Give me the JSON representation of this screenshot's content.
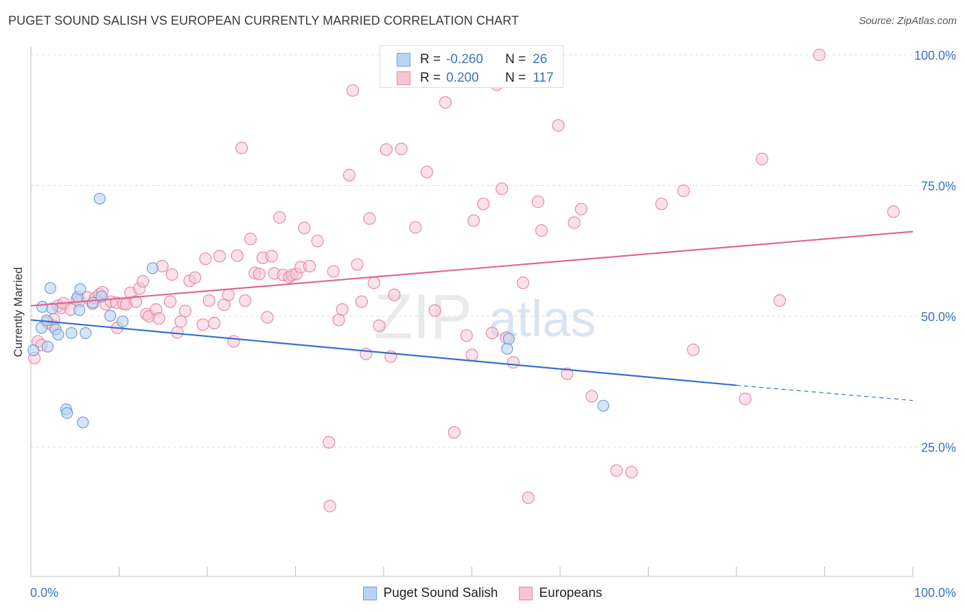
{
  "header": {
    "title": "PUGET SOUND SALISH VS EUROPEAN CURRENTLY MARRIED CORRELATION CHART",
    "source": "Source: ZipAtlas.com"
  },
  "watermark": {
    "zip": "ZIP",
    "atlas": "atlas"
  },
  "stats": {
    "rows": [
      {
        "r_label": "R =",
        "r_value": "-0.260",
        "n_label": "N =",
        "n_value": "26"
      },
      {
        "r_label": "R =",
        "r_value": "0.200",
        "n_label": "N =",
        "n_value": "117"
      }
    ]
  },
  "legend": {
    "items": [
      "Puget Sound Salish",
      "Europeans"
    ]
  },
  "colors": {
    "salish_fill": "#b8d3f3",
    "salish_stroke": "#6f9fd8",
    "salish_line": "#2f6fd0",
    "euro_fill": "#f7c3d3",
    "euro_stroke": "#e58aa8",
    "euro_line": "#e0668f",
    "axis_label": "#3b72c4",
    "grid": "#dddddd"
  },
  "chart_data": {
    "type": "scatter",
    "title": "PUGET SOUND SALISH VS EUROPEAN CURRENTLY MARRIED CORRELATION CHART",
    "xlabel": "",
    "ylabel": "Currently Married",
    "xlim": [
      0,
      100
    ],
    "ylim": [
      0,
      103
    ],
    "x_tick_labels": [
      "0.0%",
      "100.0%"
    ],
    "y_ticks": [
      25,
      50,
      75,
      100
    ],
    "y_tick_labels": [
      "25.0%",
      "50.0%",
      "75.0%",
      "100.0%"
    ],
    "grid": true,
    "legend_position": "bottom-center",
    "series": [
      {
        "name": "Puget Sound Salish",
        "r": -0.26,
        "n": 26,
        "trend": {
          "x0": 0,
          "y0": 49.3,
          "x1": 80,
          "y1": 36.8,
          "dash_to_x": 100,
          "dash_to_y": 33.9
        },
        "points": [
          [
            0.3,
            43.5
          ],
          [
            1.2,
            47.8
          ],
          [
            1.3,
            51.8
          ],
          [
            1.8,
            49.2
          ],
          [
            1.9,
            44.2
          ],
          [
            2.2,
            55.4
          ],
          [
            2.4,
            51.5
          ],
          [
            2.8,
            47.5
          ],
          [
            3.1,
            46.5
          ],
          [
            4.0,
            32.2
          ],
          [
            4.1,
            31.5
          ],
          [
            4.6,
            46.8
          ],
          [
            5.3,
            53.7
          ],
          [
            5.5,
            51.2
          ],
          [
            5.6,
            55.2
          ],
          [
            5.9,
            29.7
          ],
          [
            6.2,
            46.8
          ],
          [
            7.0,
            52.6
          ],
          [
            7.8,
            72.5
          ],
          [
            8.0,
            53.8
          ],
          [
            9.0,
            50.1
          ],
          [
            10.4,
            49.0
          ],
          [
            13.8,
            59.2
          ],
          [
            54.0,
            43.8
          ],
          [
            54.2,
            45.7
          ],
          [
            64.9,
            32.9
          ]
        ]
      },
      {
        "name": "Europeans",
        "r": 0.2,
        "n": 117,
        "trend": {
          "x0": 0,
          "y0": 52.0,
          "x1": 100,
          "y1": 66.2
        },
        "points": [
          [
            0.4,
            42.0
          ],
          [
            0.8,
            45.2
          ],
          [
            1.2,
            44.5
          ],
          [
            1.9,
            48.8
          ],
          [
            2.5,
            48.2
          ],
          [
            2.6,
            49.4
          ],
          [
            3.1,
            52.0
          ],
          [
            3.4,
            51.6
          ],
          [
            3.7,
            52.5
          ],
          [
            4.5,
            51.3
          ],
          [
            5.2,
            53.2
          ],
          [
            5.5,
            52.9
          ],
          [
            6.4,
            53.6
          ],
          [
            7.0,
            52.4
          ],
          [
            7.3,
            53.5
          ],
          [
            7.8,
            54.2
          ],
          [
            8.1,
            54.6
          ],
          [
            8.5,
            52.3
          ],
          [
            9.1,
            52.8
          ],
          [
            9.7,
            52.6
          ],
          [
            9.8,
            47.8
          ],
          [
            10.5,
            52.4
          ],
          [
            10.8,
            52.3
          ],
          [
            11.3,
            54.5
          ],
          [
            11.9,
            52.8
          ],
          [
            12.3,
            55.3
          ],
          [
            12.7,
            56.7
          ],
          [
            13.1,
            50.4
          ],
          [
            13.4,
            50.0
          ],
          [
            14.2,
            51.3
          ],
          [
            14.5,
            49.6
          ],
          [
            14.9,
            59.6
          ],
          [
            15.8,
            52.8
          ],
          [
            16.0,
            58.0
          ],
          [
            16.6,
            46.9
          ],
          [
            17.0,
            49.0
          ],
          [
            17.5,
            51.0
          ],
          [
            18.0,
            56.8
          ],
          [
            18.6,
            57.4
          ],
          [
            19.5,
            48.4
          ],
          [
            19.8,
            61.0
          ],
          [
            20.2,
            53.0
          ],
          [
            20.8,
            48.7
          ],
          [
            21.4,
            61.5
          ],
          [
            21.9,
            52.2
          ],
          [
            22.4,
            54.1
          ],
          [
            23.0,
            45.2
          ],
          [
            23.4,
            61.6
          ],
          [
            23.9,
            82.2
          ],
          [
            24.3,
            53.0
          ],
          [
            24.9,
            64.8
          ],
          [
            25.4,
            58.3
          ],
          [
            25.9,
            58.1
          ],
          [
            26.3,
            61.2
          ],
          [
            26.8,
            49.8
          ],
          [
            27.3,
            61.5
          ],
          [
            27.6,
            58.2
          ],
          [
            28.2,
            68.9
          ],
          [
            28.6,
            57.9
          ],
          [
            29.3,
            57.5
          ],
          [
            29.6,
            57.9
          ],
          [
            30.1,
            58.1
          ],
          [
            30.6,
            59.4
          ],
          [
            31.0,
            66.9
          ],
          [
            31.6,
            59.6
          ],
          [
            32.5,
            64.4
          ],
          [
            33.8,
            25.9
          ],
          [
            33.9,
            13.7
          ],
          [
            34.3,
            58.6
          ],
          [
            34.9,
            49.3
          ],
          [
            35.3,
            51.3
          ],
          [
            36.1,
            77.0
          ],
          [
            36.5,
            93.2
          ],
          [
            37.0,
            59.9
          ],
          [
            37.5,
            52.8
          ],
          [
            38.0,
            42.8
          ],
          [
            38.4,
            68.7
          ],
          [
            38.9,
            56.4
          ],
          [
            39.5,
            48.2
          ],
          [
            40.3,
            81.9
          ],
          [
            40.8,
            42.3
          ],
          [
            41.2,
            54.1
          ],
          [
            42.0,
            82.0
          ],
          [
            43.0,
            100.3
          ],
          [
            43.6,
            67.0
          ],
          [
            44.9,
            77.6
          ],
          [
            45.8,
            51.1
          ],
          [
            47.0,
            90.9
          ],
          [
            48.0,
            27.8
          ],
          [
            49.4,
            46.3
          ],
          [
            50.0,
            42.6
          ],
          [
            50.2,
            68.3
          ],
          [
            51.3,
            71.5
          ],
          [
            52.3,
            46.8
          ],
          [
            52.8,
            94.3
          ],
          [
            53.4,
            74.4
          ],
          [
            53.9,
            45.9
          ],
          [
            54.7,
            41.2
          ],
          [
            55.8,
            56.4
          ],
          [
            56.4,
            15.3
          ],
          [
            57.5,
            71.9
          ],
          [
            57.9,
            66.4
          ],
          [
            59.8,
            86.5
          ],
          [
            60.8,
            39.0
          ],
          [
            61.6,
            67.9
          ],
          [
            62.4,
            70.5
          ],
          [
            63.6,
            34.7
          ],
          [
            66.4,
            20.5
          ],
          [
            68.1,
            20.2
          ],
          [
            71.5,
            71.5
          ],
          [
            74.0,
            74.0
          ],
          [
            75.1,
            43.6
          ],
          [
            81.0,
            34.2
          ],
          [
            82.9,
            80.1
          ],
          [
            84.9,
            53.0
          ],
          [
            89.4,
            100.0
          ],
          [
            97.8,
            70.0
          ]
        ]
      }
    ]
  }
}
